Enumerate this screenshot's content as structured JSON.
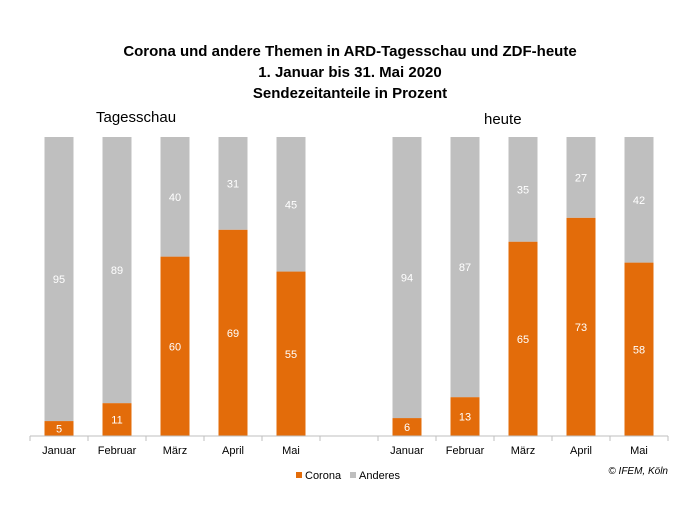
{
  "chart_data": {
    "type": "bar",
    "stacked": true,
    "title_lines": [
      "Corona und andere Themen in ARD-Tagesschau und ZDF-heute",
      "1. Januar bis 31. Mai 2020",
      "Sendezeitanteile in Prozent"
    ],
    "categories": [
      "Januar",
      "Februar",
      "März",
      "April",
      "Mai"
    ],
    "panels": [
      {
        "label": "Tagesschau",
        "series": [
          {
            "name": "Corona",
            "values": [
              5,
              11,
              60,
              69,
              55
            ]
          },
          {
            "name": "Anderes",
            "values": [
              95,
              89,
              40,
              31,
              45
            ]
          }
        ]
      },
      {
        "label": "heute",
        "series": [
          {
            "name": "Corona",
            "values": [
              6,
              13,
              65,
              73,
              58
            ]
          },
          {
            "name": "Anderes",
            "values": [
              94,
              87,
              35,
              27,
              42
            ]
          }
        ]
      }
    ],
    "ylim": [
      0,
      100
    ],
    "grid": false,
    "legend": {
      "position": "bottom",
      "items": [
        {
          "name": "Corona",
          "color": "#e36c0a"
        },
        {
          "name": "Anderes",
          "color": "#bfbfbf"
        }
      ]
    },
    "colors": {
      "Corona": "#e36c0a",
      "Anderes": "#bfbfbf"
    },
    "credit": "© IFEM, Köln"
  }
}
